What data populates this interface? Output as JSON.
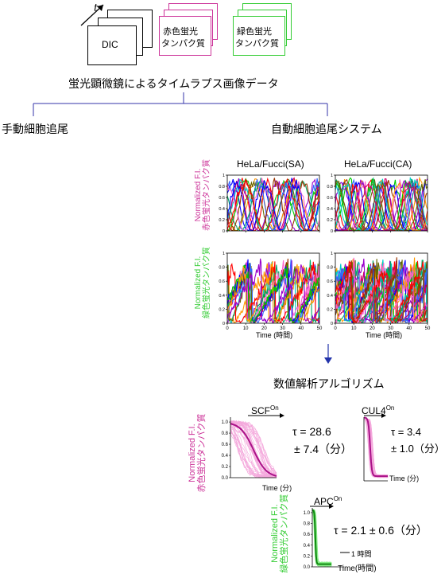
{
  "stack": {
    "time_label": "t",
    "dic_label": "DIC",
    "red_label_1": "赤色蛍光",
    "red_label_2": "タンパク質",
    "green_label_1": "緑色蛍光",
    "green_label_2": "タンパク質",
    "red_color": "#cc3399",
    "green_color": "#33cc33"
  },
  "title": "蛍光顕微鏡によるタイムラプス画像データ",
  "branches": {
    "manual": "手動細胞追尾",
    "auto": "自動細胞追尾システム",
    "line_color": "#3333aa"
  },
  "plots": {
    "title_sa": "HeLa/Fucci(SA)",
    "title_ca": "HeLa/Fucci(CA)",
    "ylabel_red_1": "Normalized F.I.",
    "ylabel_red_2": "赤色蛍光タンパク質",
    "ylabel_green_1": "Normalized F.I.",
    "ylabel_green_2": "緑色蛍光タンパク質",
    "xlabel_1": "Time",
    "xlabel_2": "(時間)",
    "xticks": [
      "0",
      "10",
      "20",
      "30",
      "40",
      "50"
    ],
    "yticks": [
      "0",
      "0.2",
      "0.4",
      "0.6",
      "0.8",
      "1"
    ]
  },
  "analysis": {
    "title": "数値解析アルゴリズム",
    "arrow_color": "#2233aa",
    "scf_label": "SCF",
    "scf_sup": "On",
    "scf_tau_line1": "τ = 28.6",
    "scf_tau_line2": "± 7.4（分）",
    "scf_yticks": [
      "0.0",
      "0.2",
      "0.4",
      "0.6",
      "0.8",
      "1.0"
    ],
    "scf_xlabel_1": "Time",
    "scf_xlabel_2": "(分)",
    "scf_ylabel_1": "Normalized F.I.",
    "scf_ylabel_2": "赤色蛍光タンパク質",
    "cul4_label": "CUL4",
    "cul4_sup": "On",
    "cul4_tau_line1": "τ = 3.4",
    "cul4_tau_line2": "± 1.0（分）",
    "cul4_xlabel_1": "Time",
    "cul4_xlabel_2": "(分)",
    "apc_label": "APC",
    "apc_sup": "On",
    "apc_tau": "τ = 2.1 ± 0.6（分）",
    "apc_yticks": [
      "0.0",
      "0.2",
      "0.4",
      "0.6",
      "0.8",
      "1.0"
    ],
    "apc_scale": "1 時間",
    "apc_xlabel_1": "Time",
    "apc_xlabel_2": "(時間)",
    "apc_ylabel_1": "Normalized F.I.",
    "apc_ylabel_2": "緑色蛍光タンパク質"
  }
}
